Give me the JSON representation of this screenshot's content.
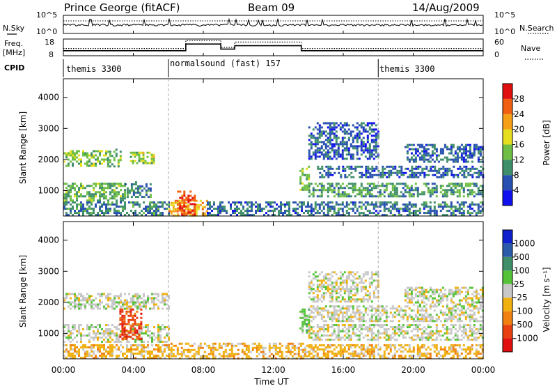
{
  "header": {
    "station": "Prince George (fitACF)",
    "beam": "Beam 09",
    "date": "14/Aug/2009"
  },
  "chart_data": [
    {
      "type": "line",
      "panel": "noise",
      "left_label": "N.Sky",
      "right_label": "N.Search",
      "yticks_left": [
        "10^5",
        "10^0"
      ],
      "yticks_right": [
        "10^5",
        "10^0"
      ],
      "scale": "log"
    },
    {
      "type": "line",
      "panel": "frequency",
      "left_label": "Freq.",
      "left_units": "[MHz]",
      "right_label": "Nave",
      "yticks_left": [
        "18",
        "8"
      ],
      "yticks_right": [
        "60",
        "0"
      ],
      "freq_series": {
        "x_hours": [
          0,
          6,
          7,
          9,
          9.8,
          13.6,
          18,
          24
        ],
        "values": [
          11,
          11,
          15,
          12,
          14,
          11,
          11,
          11
        ]
      },
      "nave_series": {
        "x_hours": [
          0,
          6,
          7,
          9,
          9.8,
          13.6,
          18,
          24
        ],
        "values": [
          26,
          26,
          55,
          30,
          49,
          26,
          26,
          26
        ]
      }
    },
    {
      "type": "table",
      "panel": "cpid",
      "label": "CPID",
      "segments": [
        {
          "start_hour": 0,
          "text": "themis 3300"
        },
        {
          "start_hour": 6,
          "text": "normalsound (fast) 157"
        },
        {
          "start_hour": 18,
          "text": "themis 3300"
        }
      ]
    },
    {
      "type": "heatmap",
      "panel": "power",
      "ylabel": "Slant Range [km]",
      "yticks": [
        "1000",
        "2000",
        "3000",
        "4000"
      ],
      "ylim": [
        180,
        4600
      ],
      "colorbar_label": "Power [dB]",
      "colorbar_ticks": [
        "4",
        "8",
        "12",
        "16",
        "20",
        "24",
        "28"
      ],
      "colorbar_range": [
        0,
        32
      ],
      "colors": [
        "#1010ee",
        "#2850b0",
        "#3f8f6a",
        "#6fbe45",
        "#e6df20",
        "#f5a016",
        "#f06010",
        "#e01010"
      ],
      "bands": [
        {
          "t": [
            0.0,
            2.5
          ],
          "r": [
            1800,
            2300
          ],
          "v": 14
        },
        {
          "t": [
            2.5,
            3.3
          ],
          "r": [
            1750,
            2350
          ],
          "v": 12
        },
        {
          "t": [
            3.8,
            5.2
          ],
          "r": [
            1850,
            2250
          ],
          "v": 16
        },
        {
          "t": [
            0.0,
            3.5
          ],
          "r": [
            650,
            1250
          ],
          "v": 12
        },
        {
          "t": [
            3.5,
            5.0
          ],
          "r": [
            800,
            1300
          ],
          "v": 8
        },
        {
          "t": [
            0.0,
            6.0
          ],
          "r": [
            200,
            650
          ],
          "v": 8
        },
        {
          "t": [
            6.0,
            8.2
          ],
          "r": [
            200,
            700
          ],
          "v": 22
        },
        {
          "t": [
            6.5,
            7.5
          ],
          "r": [
            200,
            1000
          ],
          "v": 28
        },
        {
          "t": [
            8.2,
            14.0
          ],
          "r": [
            200,
            650
          ],
          "v": 6
        },
        {
          "t": [
            13.5,
            14.0
          ],
          "r": [
            1000,
            1800
          ],
          "v": 14
        },
        {
          "t": [
            14.5,
            24.0
          ],
          "r": [
            1400,
            1800
          ],
          "v": 6
        },
        {
          "t": [
            14.0,
            24.0
          ],
          "r": [
            800,
            1250
          ],
          "v": 10
        },
        {
          "t": [
            14.0,
            24.0
          ],
          "r": [
            200,
            650
          ],
          "v": 7
        },
        {
          "t": [
            14.0,
            18.0
          ],
          "r": [
            2000,
            3200
          ],
          "v": 5
        },
        {
          "t": [
            19.5,
            24.0
          ],
          "r": [
            1900,
            2500
          ],
          "v": 6
        }
      ]
    },
    {
      "type": "heatmap",
      "panel": "velocity",
      "ylabel": "Slant Range [km]",
      "yticks": [
        "1000",
        "2000",
        "3000",
        "4000"
      ],
      "ylim": [
        180,
        4600
      ],
      "colorbar_label": "Velocity  [m s⁻¹]",
      "colorbar_ticks": [
        "1000",
        "500",
        "100",
        "25",
        "-25",
        "-100",
        "-500",
        "-1000"
      ],
      "colors": [
        "#1020cc",
        "#2a5aa8",
        "#3f8f6a",
        "#55c23a",
        "#c8c8c8",
        "#f0b010",
        "#f08010",
        "#e84010",
        "#e01010"
      ],
      "bands": [
        {
          "t": [
            0.0,
            6.0
          ],
          "r": [
            1800,
            2300
          ],
          "v": 4
        },
        {
          "t": [
            0.0,
            6.0
          ],
          "r": [
            700,
            1300
          ],
          "v": 4
        },
        {
          "t": [
            3.2,
            4.5
          ],
          "r": [
            800,
            1800
          ],
          "v": 7
        },
        {
          "t": [
            0.0,
            6.0
          ],
          "r": [
            200,
            650
          ],
          "v": 5
        },
        {
          "t": [
            6.0,
            14.0
          ],
          "r": [
            200,
            700
          ],
          "v": 5
        },
        {
          "t": [
            13.5,
            14.0
          ],
          "r": [
            1000,
            1800
          ],
          "v": 3
        },
        {
          "t": [
            14.0,
            24.0
          ],
          "r": [
            1400,
            1900
          ],
          "v": 4
        },
        {
          "t": [
            14.0,
            24.0
          ],
          "r": [
            800,
            1300
          ],
          "v": 4
        },
        {
          "t": [
            14.0,
            24.0
          ],
          "r": [
            200,
            650
          ],
          "v": 5
        },
        {
          "t": [
            14.0,
            18.0
          ],
          "r": [
            2000,
            3000
          ],
          "v": 4
        },
        {
          "t": [
            19.5,
            24.0
          ],
          "r": [
            1900,
            2500
          ],
          "v": 4
        }
      ]
    }
  ],
  "xaxis": {
    "label": "Time UT",
    "ticks": [
      "00:00",
      "04:00",
      "08:00",
      "12:00",
      "16:00",
      "20:00",
      "00:00"
    ],
    "tick_hours": [
      0,
      4,
      8,
      12,
      16,
      20,
      24
    ],
    "xlim": [
      0,
      24
    ],
    "mode_change_hours": [
      6,
      18
    ]
  }
}
